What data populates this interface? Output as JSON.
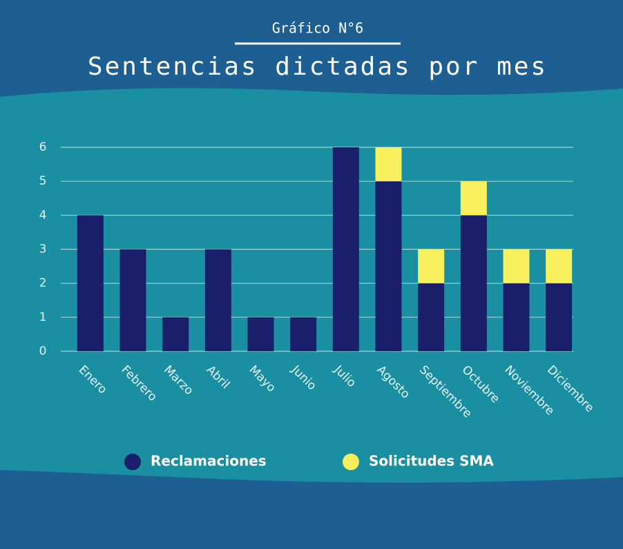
{
  "chart_data": {
    "type": "stacked_bar",
    "subtitle": "Gráfico N°6",
    "title": "Sentencias dictadas por mes",
    "categories": [
      "Enero",
      "Febrero",
      "Marzo",
      "Abril",
      "Mayo",
      "Junio",
      "Julio",
      "Agosto",
      "Septiembre",
      "Octubre",
      "Noviembre",
      "Diciembre"
    ],
    "series": [
      {
        "name": "Reclamaciones",
        "color": "#1a1f6b",
        "values": [
          4,
          3,
          1,
          3,
          1,
          1,
          6,
          5,
          2,
          4,
          2,
          2
        ]
      },
      {
        "name": "Solicitudes SMA",
        "color": "#f7ef5c",
        "values": [
          0,
          0,
          0,
          0,
          0,
          0,
          0,
          1,
          1,
          1,
          1,
          1
        ]
      }
    ],
    "ylim": [
      0,
      6
    ],
    "yticks": [
      0,
      1,
      2,
      3,
      4,
      5,
      6
    ],
    "grid": true,
    "legend": "bottom"
  }
}
